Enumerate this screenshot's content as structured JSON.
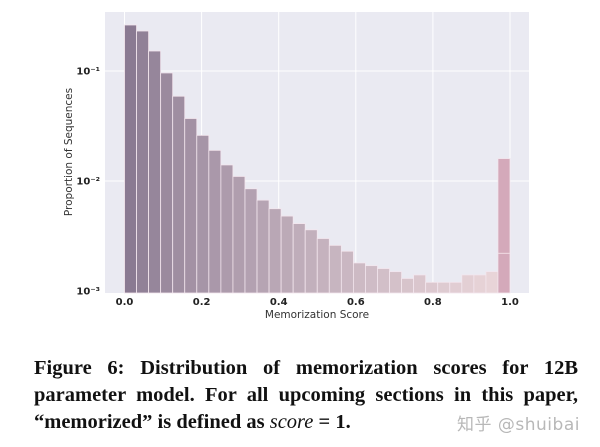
{
  "chart_data": {
    "type": "bar",
    "title": "",
    "xlabel": "Memorization Score",
    "ylabel": "Proportion of Sequences",
    "yscale": "log",
    "ylim": [
      0.001,
      0.45
    ],
    "xlim": [
      -0.05,
      1.05
    ],
    "grid": true,
    "background": "#eaeaf2",
    "x_ticks": [
      "0.0",
      "0.2",
      "0.4",
      "0.6",
      "0.8",
      "1.0"
    ],
    "y_ticks": [
      "10⁻³",
      "10⁻²",
      "10⁻¹"
    ],
    "bin_width": 0.03125,
    "bins_start": [
      0.0,
      0.03125,
      0.0625,
      0.09375,
      0.125,
      0.15625,
      0.1875,
      0.21875,
      0.25,
      0.28125,
      0.3125,
      0.34375,
      0.375,
      0.40625,
      0.4375,
      0.46875,
      0.5,
      0.53125,
      0.5625,
      0.59375,
      0.625,
      0.65625,
      0.6875,
      0.71875,
      0.75,
      0.78125,
      0.8125,
      0.84375,
      0.875,
      0.90625,
      0.9375,
      0.96875
    ],
    "values": [
      0.262,
      0.231,
      0.152,
      0.096,
      0.059,
      0.037,
      0.026,
      0.019,
      0.014,
      0.011,
      0.0085,
      0.0067,
      0.0056,
      0.0048,
      0.0041,
      0.0036,
      0.003,
      0.0026,
      0.0023,
      0.0018,
      0.0017,
      0.0016,
      0.0015,
      0.0013,
      0.0014,
      0.0012,
      0.0012,
      0.0012,
      0.0014,
      0.0014,
      0.0015,
      0.016
    ],
    "color_gradient": [
      "#8a7a92",
      "#e8d4d8"
    ],
    "last_bar_color": "#d4a9ba"
  },
  "caption": {
    "prefix": "Figure 6: Distribution of memorization scores for 12B parameter model. For all upcoming sections in this paper, “memorized” is defined as ",
    "italic": "score",
    "suffix": " = 1."
  },
  "watermark": "知乎 @shuibai"
}
